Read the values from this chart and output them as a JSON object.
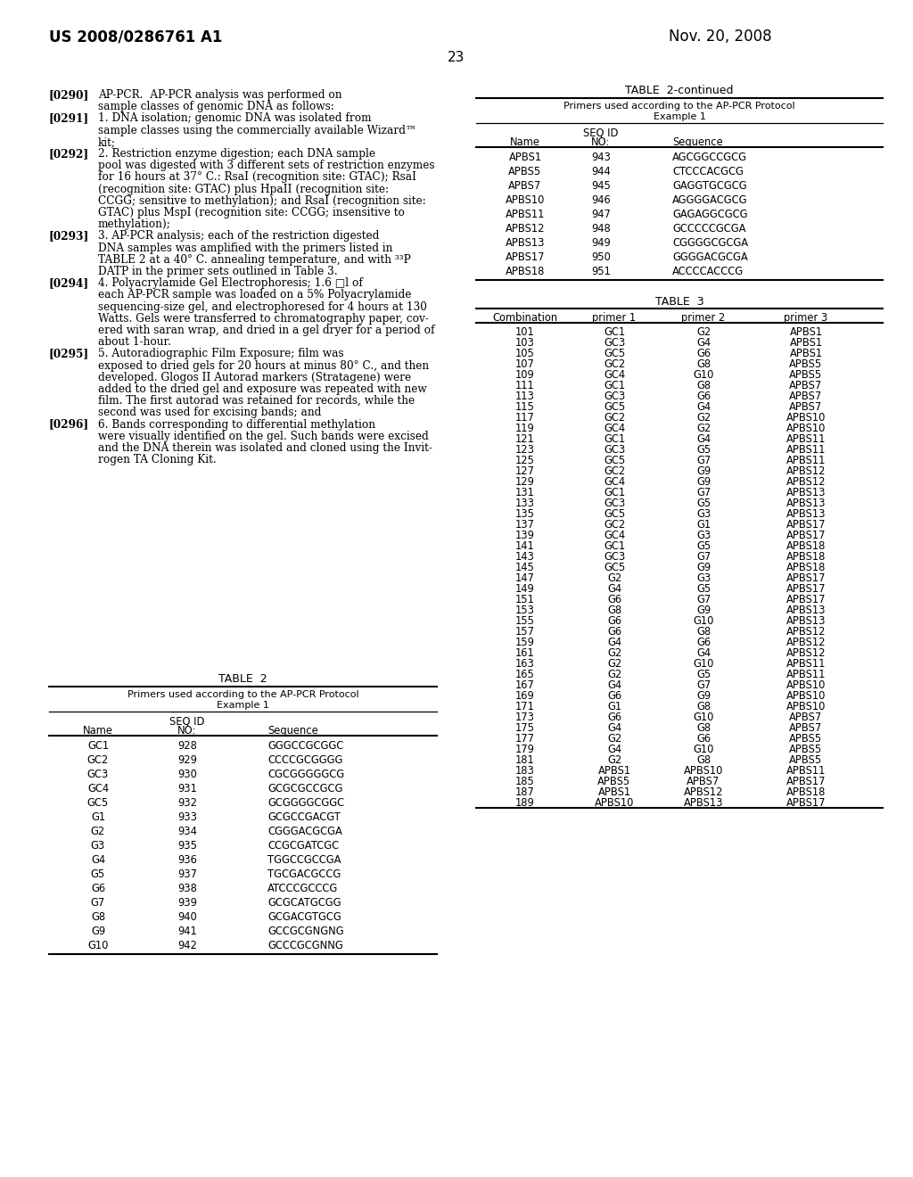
{
  "bg_color": "#ffffff",
  "header_left": "US 2008/0286761 A1",
  "header_right": "Nov. 20, 2008",
  "page_number": "23",
  "paragraphs": [
    {
      "tag": "[0290]",
      "lines": [
        "AP-PCR.  AP-PCR analysis was performed on",
        "sample classes of genomic DNA as follows:"
      ]
    },
    {
      "tag": "[0291]",
      "lines": [
        "1. DNA isolation; genomic DNA was isolated from",
        "sample classes using the commercially available Wizard™",
        "kit;"
      ]
    },
    {
      "tag": "[0292]",
      "lines": [
        "2. Restriction enzyme digestion; each DNA sample",
        "pool was digested with 3 different sets of restriction enzymes",
        "for 16 hours at 37° C.: RsaI (recognition site: GTAC); RsaI",
        "(recognition site: GTAC) plus HpaII (recognition site:",
        "CCGG; sensitive to methylation); and RsaI (recognition site:",
        "GTAC) plus MspI (recognition site: CCGG; insensitive to",
        "methylation);"
      ]
    },
    {
      "tag": "[0293]",
      "lines": [
        "3. AP-PCR analysis; each of the restriction digested",
        "DNA samples was amplified with the primers listed in",
        "TABLE 2 at a 40° C. annealing temperature, and with ³³P",
        "DATP in the primer sets outlined in Table 3."
      ]
    },
    {
      "tag": "[0294]",
      "lines": [
        "4. Polyacrylamide Gel Electrophoresis; 1.6 □l of",
        "each AP-PCR sample was loaded on a 5% Polyacrylamide",
        "sequencing-size gel, and electrophoresed for 4 hours at 130",
        "Watts. Gels were transferred to chromatography paper, cov-",
        "ered with saran wrap, and dried in a gel dryer for a period of",
        "about 1-hour."
      ]
    },
    {
      "tag": "[0295]",
      "lines": [
        "5. Autoradiographic Film Exposure; film was",
        "exposed to dried gels for 20 hours at minus 80° C., and then",
        "developed. Glogos II Autorad markers (Stratagene) were",
        "added to the dried gel and exposure was repeated with new",
        "film. The first autorad was retained for records, while the",
        "second was used for excising bands; and"
      ]
    },
    {
      "tag": "[0296]",
      "lines": [
        "6. Bands corresponding to differential methylation",
        "were visually identified on the gel. Such bands were excised",
        "and the DNA therein was isolated and cloned using the Invit-",
        "rogen TA Cloning Kit."
      ]
    }
  ],
  "table2_title": "TABLE  2",
  "table2_subtitle1": "Primers used according to the AP-PCR Protocol",
  "table2_subtitle2": "Example 1",
  "table2_rows": [
    [
      "GC1",
      "928",
      "GGGCCGCGGC"
    ],
    [
      "GC2",
      "929",
      "CCCCGCGGGG"
    ],
    [
      "GC3",
      "930",
      "CGCGGGGGCG"
    ],
    [
      "GC4",
      "931",
      "GCGCGCCGCG"
    ],
    [
      "GC5",
      "932",
      "GCGGGGCGGC"
    ],
    [
      "G1",
      "933",
      "GCGCCGACGT"
    ],
    [
      "G2",
      "934",
      "CGGGACGCGA"
    ],
    [
      "G3",
      "935",
      "CCGCGATCGC"
    ],
    [
      "G4",
      "936",
      "TGGCCGCCGA"
    ],
    [
      "G5",
      "937",
      "TGCGACGCCG"
    ],
    [
      "G6",
      "938",
      "ATCCCGCCCG"
    ],
    [
      "G7",
      "939",
      "GCGCATGCGG"
    ],
    [
      "G8",
      "940",
      "GCGACGTGCG"
    ],
    [
      "G9",
      "941",
      "GCCGCGNGNG"
    ],
    [
      "G10",
      "942",
      "GCCCGCGNNG"
    ]
  ],
  "table2cont_title": "TABLE  2-continued",
  "table2cont_subtitle1": "Primers used according to the AP-PCR Protocol",
  "table2cont_subtitle2": "Example 1",
  "table2cont_rows": [
    [
      "APBS1",
      "943",
      "AGCGGCCGCG"
    ],
    [
      "APBS5",
      "944",
      "CTCCCACGCG"
    ],
    [
      "APBS7",
      "945",
      "GAGGTGCGCG"
    ],
    [
      "APBS10",
      "946",
      "AGGGGACGCG"
    ],
    [
      "APBS11",
      "947",
      "GAGAGGCGCG"
    ],
    [
      "APBS12",
      "948",
      "GCCCCCGCGA"
    ],
    [
      "APBS13",
      "949",
      "CGGGGCGCGA"
    ],
    [
      "APBS17",
      "950",
      "GGGGACGCGA"
    ],
    [
      "APBS18",
      "951",
      "ACCCCACCCG"
    ]
  ],
  "table3_title": "TABLE  3",
  "table3_col_headers": [
    "Combination",
    "primer 1",
    "primer 2",
    "primer 3"
  ],
  "table3_rows": [
    [
      "101",
      "GC1",
      "G2",
      "APBS1"
    ],
    [
      "103",
      "GC3",
      "G4",
      "APBS1"
    ],
    [
      "105",
      "GC5",
      "G6",
      "APBS1"
    ],
    [
      "107",
      "GC2",
      "G8",
      "APBS5"
    ],
    [
      "109",
      "GC4",
      "G10",
      "APBS5"
    ],
    [
      "111",
      "GC1",
      "G8",
      "APBS7"
    ],
    [
      "113",
      "GC3",
      "G6",
      "APBS7"
    ],
    [
      "115",
      "GC5",
      "G4",
      "APBS7"
    ],
    [
      "117",
      "GC2",
      "G2",
      "APBS10"
    ],
    [
      "119",
      "GC4",
      "G2",
      "APBS10"
    ],
    [
      "121",
      "GC1",
      "G4",
      "APBS11"
    ],
    [
      "123",
      "GC3",
      "G5",
      "APBS11"
    ],
    [
      "125",
      "GC5",
      "G7",
      "APBS11"
    ],
    [
      "127",
      "GC2",
      "G9",
      "APBS12"
    ],
    [
      "129",
      "GC4",
      "G9",
      "APBS12"
    ],
    [
      "131",
      "GC1",
      "G7",
      "APBS13"
    ],
    [
      "133",
      "GC3",
      "G5",
      "APBS13"
    ],
    [
      "135",
      "GC5",
      "G3",
      "APBS13"
    ],
    [
      "137",
      "GC2",
      "G1",
      "APBS17"
    ],
    [
      "139",
      "GC4",
      "G3",
      "APBS17"
    ],
    [
      "141",
      "GC1",
      "G5",
      "APBS18"
    ],
    [
      "143",
      "GC3",
      "G7",
      "APBS18"
    ],
    [
      "145",
      "GC5",
      "G9",
      "APBS18"
    ],
    [
      "147",
      "G2",
      "G3",
      "APBS17"
    ],
    [
      "149",
      "G4",
      "G5",
      "APBS17"
    ],
    [
      "151",
      "G6",
      "G7",
      "APBS17"
    ],
    [
      "153",
      "G8",
      "G9",
      "APBS13"
    ],
    [
      "155",
      "G6",
      "G10",
      "APBS13"
    ],
    [
      "157",
      "G6",
      "G8",
      "APBS12"
    ],
    [
      "159",
      "G4",
      "G6",
      "APBS12"
    ],
    [
      "161",
      "G2",
      "G4",
      "APBS12"
    ],
    [
      "163",
      "G2",
      "G10",
      "APBS11"
    ],
    [
      "165",
      "G2",
      "G5",
      "APBS11"
    ],
    [
      "167",
      "G4",
      "G7",
      "APBS10"
    ],
    [
      "169",
      "G6",
      "G9",
      "APBS10"
    ],
    [
      "171",
      "G1",
      "G8",
      "APBS10"
    ],
    [
      "173",
      "G6",
      "G10",
      "APBS7"
    ],
    [
      "175",
      "G4",
      "G8",
      "APBS7"
    ],
    [
      "177",
      "G2",
      "G6",
      "APBS5"
    ],
    [
      "179",
      "G4",
      "G10",
      "APBS5"
    ],
    [
      "181",
      "G2",
      "G8",
      "APBS5"
    ],
    [
      "183",
      "APBS1",
      "APBS10",
      "APBS11"
    ],
    [
      "185",
      "APBS5",
      "APBS7",
      "APBS17"
    ],
    [
      "187",
      "APBS1",
      "APBS12",
      "APBS18"
    ],
    [
      "189",
      "APBS10",
      "APBS13",
      "APBS17"
    ]
  ]
}
